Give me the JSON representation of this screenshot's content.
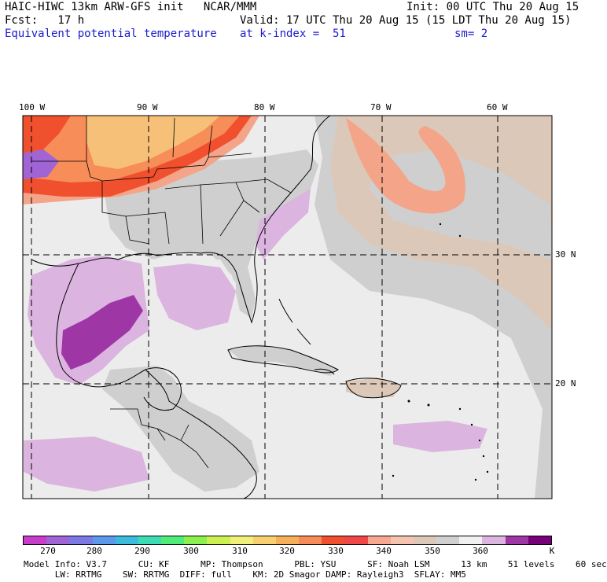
{
  "header": {
    "line1_left": "HAIC-HIWC 13km ARW-GFS init   NCAR/MMM",
    "line1_right": "Init: 00 UTC Thu 20 Aug 15",
    "line2_left": "Fcst:   17 h",
    "line2_right": "Valid: 17 UTC Thu 20 Aug 15 (15 LDT Thu 20 Aug 15)",
    "line3_left": "Equivalent potential temperature",
    "line3_mid": "at k-index =  51",
    "line3_right": "sm= 2"
  },
  "map": {
    "lon_labels": [
      "100 W",
      "90 W",
      "80 W",
      "70 W",
      "60 W"
    ],
    "lat_labels": [
      "30 N",
      "20 N"
    ],
    "colors": {
      "cool_gray": "#cfcfcf",
      "light": "#ececec",
      "tan": "#dcc8b8",
      "lavender": "#dcb4e0",
      "purple": "#9e36a6",
      "orange_light": "#f7c078",
      "orange": "#f78d58",
      "red": "#f0502e",
      "salmon": "#f4a488",
      "border": "#000000"
    }
  },
  "colorbar": {
    "colors": [
      "#c83ccc",
      "#a064d4",
      "#7c78e4",
      "#5c98ec",
      "#3cbcdc",
      "#3cdcb4",
      "#50ec78",
      "#8cf050",
      "#ccf050",
      "#f0f078",
      "#f8d070",
      "#f8b058",
      "#f88c58",
      "#f0502e",
      "#f04848",
      "#f8a890",
      "#f4c4b0",
      "#dcc8b8",
      "#d0d0d0",
      "#f0f0f0",
      "#dcb4e0",
      "#9e36a6",
      "#780078"
    ],
    "labels": [
      "270",
      "280",
      "290",
      "300",
      "310",
      "320",
      "330",
      "340",
      "350",
      "360"
    ],
    "unit": "K"
  },
  "footer": {
    "line1": "Model Info: V3.7      CU: KF      MP: Thompson      PBL: YSU      SF: Noah LSM      13 km    51 levels    60 sec",
    "line2": "      LW: RRTMG    SW: RRTMG  DIFF: full    KM: 2D Smagor DAMP: Rayleigh3  SFLAY: MM5"
  }
}
